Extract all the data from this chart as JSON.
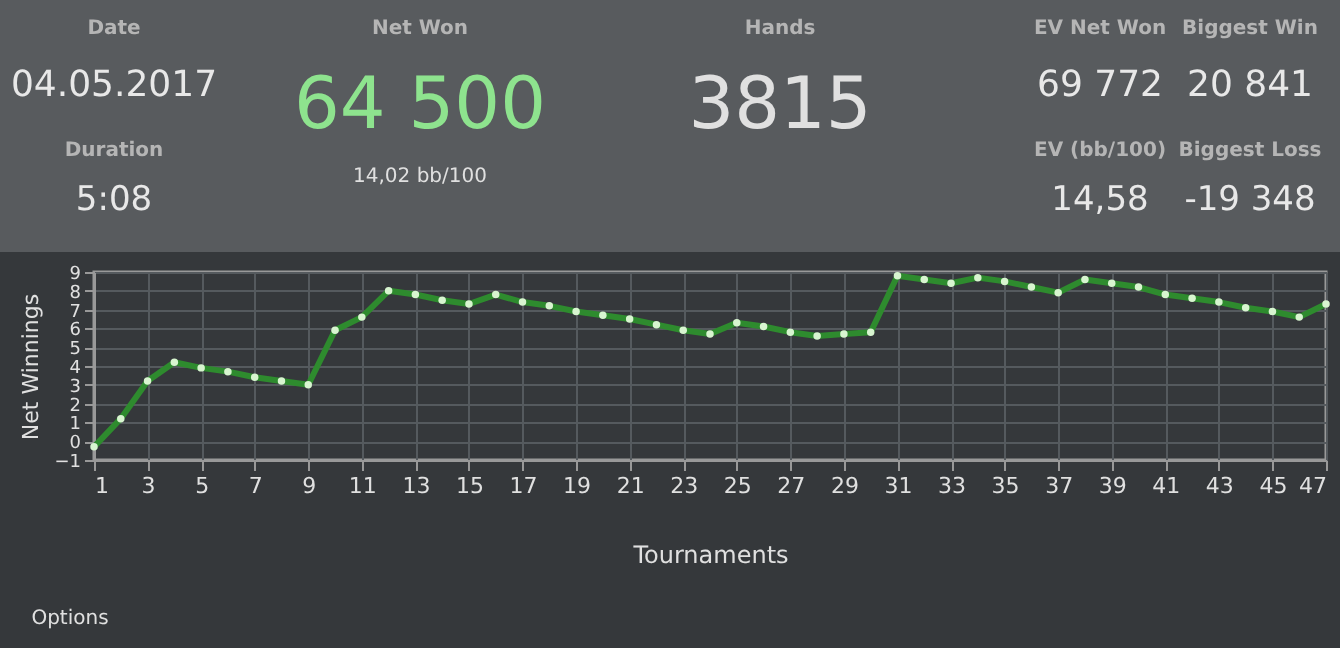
{
  "chart_data": {
    "type": "line",
    "xlabel": "Tournaments",
    "ylabel": "Net Winnings",
    "x": [
      1,
      2,
      3,
      4,
      5,
      6,
      7,
      8,
      9,
      10,
      11,
      12,
      13,
      14,
      15,
      16,
      17,
      18,
      19,
      20,
      21,
      22,
      23,
      24,
      25,
      26,
      27,
      28,
      29,
      30,
      31,
      32,
      33,
      34,
      35,
      36,
      37,
      38,
      39,
      40,
      41,
      42,
      43,
      44,
      45,
      46,
      47
    ],
    "series": [
      {
        "color": "#2e8b2e",
        "values": [
          -0.3,
          1.2,
          3.2,
          4.2,
          3.9,
          3.7,
          3.4,
          3.2,
          3.0,
          5.9,
          6.6,
          8.0,
          7.8,
          7.5,
          7.3,
          7.8,
          7.4,
          7.2,
          6.9,
          6.7,
          6.5,
          6.2,
          5.9,
          5.7,
          6.3,
          6.1,
          5.8,
          5.6,
          5.7,
          5.8,
          8.8,
          8.6,
          8.4,
          8.7,
          8.5,
          8.2,
          7.9,
          8.6,
          8.4,
          8.2,
          7.8,
          7.6,
          7.4,
          7.1,
          6.9,
          6.6,
          7.3
        ]
      }
    ],
    "xlim": [
      1,
      47
    ],
    "xticks": [
      1,
      3,
      5,
      7,
      9,
      11,
      13,
      15,
      17,
      19,
      21,
      23,
      25,
      27,
      29,
      31,
      33,
      35,
      37,
      39,
      41,
      43,
      45,
      47
    ],
    "ylim": [
      -1,
      9
    ],
    "yticks": [
      -1,
      0,
      1,
      2,
      3,
      4,
      5,
      6,
      7,
      8,
      9
    ],
    "grid": true,
    "marker": "circle",
    "line_style": "solid",
    "annotations": [
      "Date",
      "04.05.2017",
      "Duration",
      "5:08",
      "Net Won",
      "64 500",
      "14,02 bb/100",
      "Hands",
      "3815",
      "EV Net Won",
      "69 772",
      "Biggest Win",
      "20 841",
      "EV (bb/100)",
      "14,58",
      "Biggest Loss",
      "-19 348",
      "Options"
    ]
  }
}
